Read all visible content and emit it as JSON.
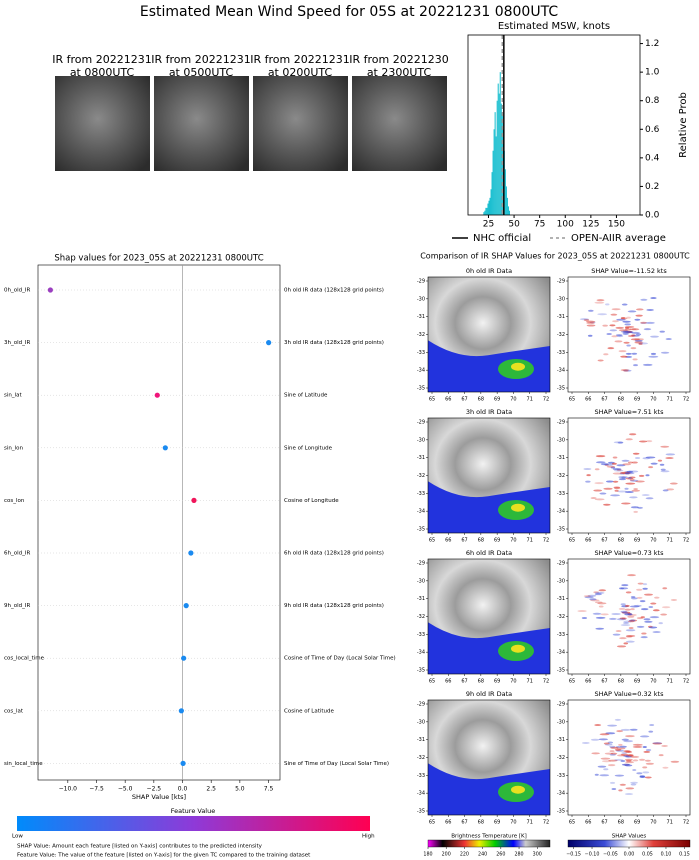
{
  "header": {
    "title": "Estimated Mean Wind Speed for 05S at 20221231 0800UTC"
  },
  "ir_thumbnails": [
    {
      "title": [
        "IR from 20221231",
        "at 0800UTC"
      ]
    },
    {
      "title": [
        "IR from 20221231",
        "at 0500UTC"
      ]
    },
    {
      "title": [
        "IR from 20221231",
        "at 0200UTC"
      ]
    },
    {
      "title": [
        "IR from 20221230",
        "at 2300UTC"
      ]
    }
  ],
  "chart_data": [
    {
      "type": "histogram",
      "title": "Estimated MSW, knots",
      "ylabel": "Relative Prob",
      "color": "#17becf",
      "bins": [
        20,
        21,
        22,
        23,
        24,
        25,
        26,
        27,
        28,
        29,
        30,
        31,
        32,
        33,
        34,
        35,
        36,
        37,
        38,
        39,
        40,
        41,
        42,
        43,
        44,
        45,
        46
      ],
      "values": [
        0.02,
        0.03,
        0.05,
        0.05,
        0.08,
        0.1,
        0.12,
        0.18,
        0.3,
        0.45,
        0.6,
        0.72,
        0.55,
        0.8,
        0.92,
        0.85,
        1.0,
        0.78,
        0.72,
        0.6,
        0.45,
        0.32,
        0.2,
        0.12,
        0.06,
        0.03
      ],
      "xlim": [
        5,
        173
      ],
      "ylim": [
        0,
        1.26
      ],
      "xticks": [
        25,
        50,
        75,
        100,
        125,
        150
      ],
      "yticks": [
        {
          "value": 0,
          "label": "0.0"
        },
        {
          "value": 0.2,
          "label": "0.2"
        },
        {
          "value": 0.4,
          "label": "0.4"
        },
        {
          "value": 0.6,
          "label": "0.6"
        },
        {
          "value": 0.8,
          "label": "0.8"
        },
        {
          "value": 1.0,
          "label": "1.0"
        },
        {
          "value": 1.2,
          "label": "1.2"
        }
      ],
      "lines": [
        {
          "name": "NHC official",
          "value": 40,
          "color": "#000000",
          "style": "solid"
        },
        {
          "name": "OPEN-AIIR average",
          "value": 38.5,
          "color": "#999999",
          "style": "dashed"
        }
      ]
    },
    {
      "type": "dot",
      "title": "Shap values for 2023_05S at 20221231 0800UTC",
      "xlabel": "SHAP Value [kts]",
      "categories": [
        "0h_old_IR",
        "3h_old_IR",
        "sin_lat",
        "sin_lon",
        "cos_lon",
        "6h_old_IR",
        "9h_old_IR",
        "cos_local_time",
        "cos_lat",
        "sin_local_time"
      ],
      "descriptions": [
        "0h old IR data (128x128 grid points)",
        "3h old IR data (128x128 grid points)",
        "Sine of Latitude",
        "Sine of Longitude",
        "Cosine of Longitude",
        "6h old IR data (128x128 grid points)",
        "9h old IR data (128x128 grid points)",
        "Cosine of Time of Day (Local Solar Time)",
        "Cosine of Latitude",
        "Sine of Time of Day (Local Solar Time)"
      ],
      "values": [
        -11.52,
        7.51,
        -2.2,
        -1.5,
        1.0,
        0.73,
        0.32,
        0.1,
        -0.1,
        0.05
      ],
      "colors": [
        "#9b3fc0",
        "#1a8af0",
        "#f0157a",
        "#1a8af0",
        "#f0155a",
        "#1a8af0",
        "#1a8af0",
        "#1a8af0",
        "#1a8af0",
        "#1a8af0"
      ],
      "xlim": [
        -12.6,
        8.5
      ],
      "xticks": [
        {
          "value": -10,
          "label": "−10.0"
        },
        {
          "value": -7.5,
          "label": "−7.5"
        },
        {
          "value": -5,
          "label": "−5.0"
        },
        {
          "value": -2.5,
          "label": "−2.5"
        },
        {
          "value": 0,
          "label": "0.0"
        },
        {
          "value": 2.5,
          "label": "2.5"
        },
        {
          "value": 5,
          "label": "5.0"
        },
        {
          "value": 7.5,
          "label": "7.5"
        }
      ],
      "colorbar": {
        "title": "Feature Value",
        "low": "Low",
        "high": "High",
        "colors": [
          "#008bfb",
          "#8e3ad8",
          "#ff0052"
        ]
      },
      "notes": [
        "SHAP Value: Amount each feature [listed on Y-axis] contributes to the predicted intensity",
        "Feature Value: The value of the feature [listed on Y-axis] for the given TC compared to the training dataset"
      ]
    }
  ],
  "comparison": {
    "title": "Comparison of IR SHAP Values for 2023_05S at 20221231 0800UTC",
    "rows": [
      {
        "ir_title": "0h old IR Data",
        "shap_title": "SHAP Value=-11.52 kts"
      },
      {
        "ir_title": "3h old IR Data",
        "shap_title": "SHAP Value=7.51 kts"
      },
      {
        "ir_title": "6h old IR Data",
        "shap_title": "SHAP Value=0.73 kts"
      },
      {
        "ir_title": "9h old IR Data",
        "shap_title": "SHAP Value=0.32 kts"
      }
    ],
    "lat_ticks": [
      -29,
      -30,
      -31,
      -32,
      -33,
      -34,
      -35
    ],
    "lon_ticks": [
      65,
      66,
      67,
      68,
      69,
      70,
      71,
      72
    ],
    "colorbars": [
      {
        "label": "Brightness Temperature [K]",
        "lim": [
          180,
          314
        ],
        "ticks": [
          180,
          200,
          220,
          240,
          260,
          280,
          300
        ]
      },
      {
        "label": "SHAP Values",
        "lim": [
          -0.165,
          0.165
        ],
        "ticks": [
          {
            "value": -0.15,
            "label": "−0.15"
          },
          {
            "value": -0.1,
            "label": "−0.10"
          },
          {
            "value": -0.05,
            "label": "−0.05"
          },
          {
            "value": 0,
            "label": "0.00"
          },
          {
            "value": 0.05,
            "label": "0.05"
          },
          {
            "value": 0.1,
            "label": "0.10"
          },
          {
            "value": 0.15,
            "label": "0.15"
          }
        ]
      }
    ]
  }
}
